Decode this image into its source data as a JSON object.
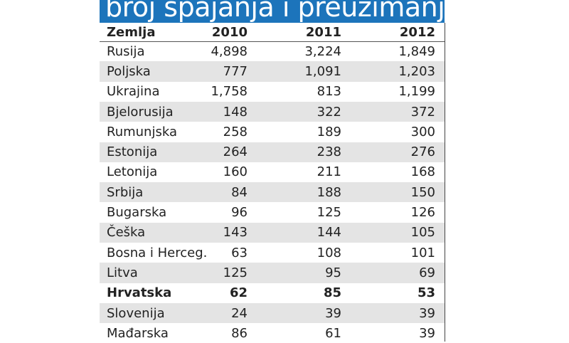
{
  "title": "broj spajanja i preuzimanja",
  "table": {
    "header": [
      "Zemlja",
      "2010",
      "2011",
      "2012"
    ],
    "rows": [
      [
        "Rusija",
        "4,898",
        "3,224",
        "1,849"
      ],
      [
        "Poljska",
        "777",
        "1,091",
        "1,203"
      ],
      [
        "Ukrajina",
        "1,758",
        "813",
        "1,199"
      ],
      [
        "Bjelorusija",
        "148",
        "322",
        "372"
      ],
      [
        "Rumunjska",
        "258",
        "189",
        "300"
      ],
      [
        "Estonija",
        "264",
        "238",
        "276"
      ],
      [
        "Letonija",
        "160",
        "211",
        "168"
      ],
      [
        "Srbija",
        "84",
        "188",
        "150"
      ],
      [
        "Bugarska",
        "96",
        "125",
        "126"
      ],
      [
        "Češka",
        "143",
        "144",
        "105"
      ],
      [
        "Bosna i Herceg.",
        "63",
        "108",
        "101"
      ],
      [
        "Litva",
        "125",
        "95",
        "69"
      ],
      [
        "Hrvatska",
        "62",
        "85",
        "53"
      ],
      [
        "Slovenija",
        "24",
        "39",
        "39"
      ],
      [
        "Mađarska",
        "86",
        "61",
        "39"
      ]
    ]
  }
}
